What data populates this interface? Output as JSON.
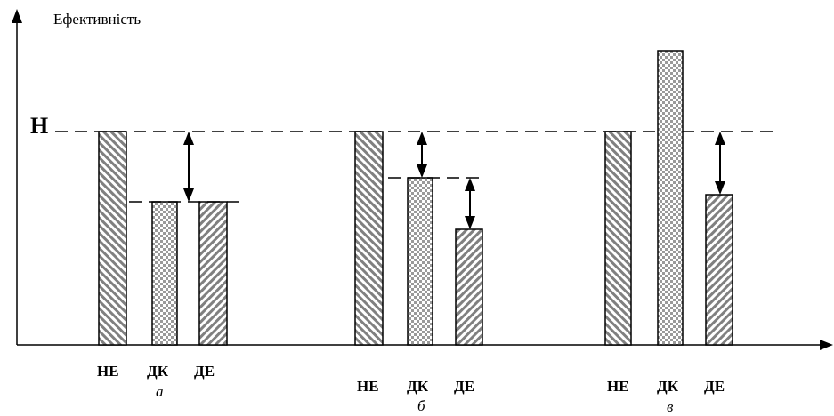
{
  "axis": {
    "y_label": "Ефективність",
    "level_label": "Н"
  },
  "categories": [
    "НЕ",
    "ДК",
    "ДЕ"
  ],
  "groups": [
    {
      "id": "a",
      "label": "а",
      "bars": [
        {
          "category": "НЕ",
          "pattern": "hatch-ne",
          "value": 100
        },
        {
          "category": "ДК",
          "pattern": "checker",
          "value": 68
        },
        {
          "category": "ДЕ",
          "pattern": "hatch-de",
          "value": 68
        }
      ]
    },
    {
      "id": "b",
      "label": "б",
      "bars": [
        {
          "category": "НЕ",
          "pattern": "hatch-ne",
          "value": 100
        },
        {
          "category": "ДК",
          "pattern": "checker",
          "value": 78
        },
        {
          "category": "ДЕ",
          "pattern": "hatch-de",
          "value": 54
        }
      ]
    },
    {
      "id": "c",
      "label": "в",
      "bars": [
        {
          "category": "НЕ",
          "pattern": "hatch-ne",
          "value": 100
        },
        {
          "category": "ДК",
          "pattern": "checker",
          "value": 138
        },
        {
          "category": "ДЕ",
          "pattern": "hatch-de",
          "value": 71
        }
      ]
    }
  ],
  "colors": {
    "line": "#000000",
    "background": "#ffffff",
    "hatch": "#808080",
    "checker": "#9a9a9a"
  }
}
